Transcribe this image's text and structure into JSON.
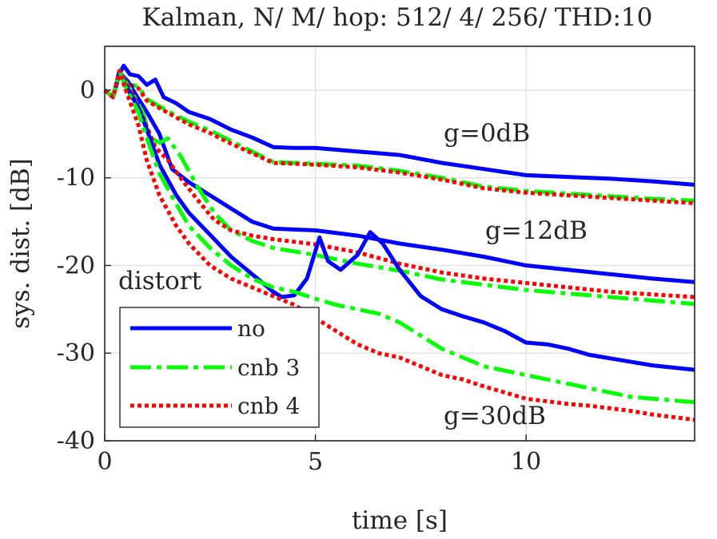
{
  "chart_data": {
    "type": "line",
    "title": "Kalman, N/ M/ hop: 512/ 4/ 256/ THD:10",
    "xlabel": "time [s]",
    "ylabel": "sys. dist. [dB]",
    "xlim": [
      0,
      14
    ],
    "ylim": [
      -40,
      5
    ],
    "xticks": [
      0,
      5,
      10
    ],
    "xtick_labels": [
      "0",
      "5",
      "10"
    ],
    "yticks": [
      0,
      -10,
      -20,
      -30,
      -40
    ],
    "ytick_labels": [
      "0",
      "-10",
      "-20",
      "-30",
      "-40"
    ],
    "grid": true,
    "legend_title": "distort",
    "legend_position": "bottom-left",
    "legend": [
      "no",
      "cnb 3",
      "cnb 4"
    ],
    "annotations": [
      {
        "text": "g=0dB",
        "x": 8.0,
        "y": -5.2
      },
      {
        "text": "g=12dB",
        "x": 9.2,
        "y": -16.0
      },
      {
        "text": "g=30dB",
        "x": 8.0,
        "y": -37.4
      }
    ],
    "series": [
      {
        "name": "no",
        "group": "g=0dB",
        "color": "#0000ff",
        "style": "solid",
        "x": [
          0,
          0.2,
          0.35,
          0.45,
          0.6,
          0.8,
          1.0,
          1.2,
          1.4,
          1.7,
          2.0,
          2.5,
          3.0,
          3.5,
          4.0,
          4.5,
          5.0,
          5.5,
          6.0,
          6.5,
          7.0,
          8.0,
          9.0,
          10.0,
          11.0,
          12.0,
          13.0,
          14.0
        ],
        "y": [
          0,
          -0.8,
          1.8,
          2.8,
          1.8,
          1.6,
          0.6,
          1.2,
          -0.8,
          -1.5,
          -2.5,
          -3.3,
          -4.5,
          -5.4,
          -6.5,
          -6.6,
          -6.6,
          -6.8,
          -7.0,
          -7.2,
          -7.4,
          -8.3,
          -9.0,
          -9.7,
          -9.9,
          -10.1,
          -10.4,
          -10.8
        ]
      },
      {
        "name": "cnb 3",
        "group": "g=0dB",
        "color": "#00ff00",
        "style": "dashdot",
        "x": [
          0,
          0.2,
          0.35,
          0.5,
          0.8,
          1.0,
          1.5,
          2.0,
          2.5,
          3.0,
          3.5,
          4.0,
          5.0,
          6.0,
          7.0,
          8.0,
          9.0,
          10.0,
          11.0,
          12.0,
          13.0,
          14.0
        ],
        "y": [
          0,
          -0.8,
          1.8,
          0.8,
          0.4,
          -1.0,
          -2.4,
          -3.6,
          -4.6,
          -5.8,
          -7.0,
          -8.2,
          -8.4,
          -8.6,
          -9.2,
          -10.0,
          -11.0,
          -11.5,
          -11.8,
          -12.1,
          -12.4,
          -12.6
        ]
      },
      {
        "name": "cnb 4",
        "group": "g=0dB",
        "color": "#ff0000",
        "style": "dotted",
        "x": [
          0,
          0.2,
          0.35,
          0.5,
          0.8,
          1.0,
          1.5,
          2.0,
          2.5,
          3.0,
          3.5,
          4.0,
          5.0,
          6.0,
          7.0,
          8.0,
          9.0,
          10.0,
          11.0,
          12.0,
          13.0,
          14.0
        ],
        "y": [
          0,
          -0.8,
          1.8,
          0.8,
          0.2,
          -1.2,
          -2.6,
          -3.9,
          -4.9,
          -6.1,
          -7.2,
          -8.3,
          -8.5,
          -8.8,
          -9.4,
          -10.2,
          -11.2,
          -11.7,
          -12.0,
          -12.3,
          -12.6,
          -12.9
        ]
      },
      {
        "name": "no",
        "group": "g=12dB",
        "color": "#0000ff",
        "style": "solid",
        "x": [
          0,
          0.2,
          0.35,
          0.55,
          0.75,
          1.0,
          1.3,
          1.6,
          2.0,
          2.5,
          3.0,
          3.5,
          4.0,
          5.0,
          6.0,
          7.0,
          8.0,
          9.0,
          10.0,
          11.0,
          12.0,
          13.0,
          14.0
        ],
        "y": [
          0,
          -0.8,
          2.0,
          1.0,
          -0.6,
          -2.5,
          -5.0,
          -9.0,
          -10.5,
          -12.0,
          -13.5,
          -15.0,
          -15.8,
          -16.0,
          -16.6,
          -17.5,
          -18.2,
          -19.0,
          -20.0,
          -20.5,
          -21.0,
          -21.5,
          -21.9
        ]
      },
      {
        "name": "cnb 3",
        "group": "g=12dB",
        "color": "#00ff00",
        "style": "dashdot",
        "x": [
          0,
          0.2,
          0.35,
          0.55,
          0.9,
          1.1,
          1.3,
          1.5,
          1.8,
          2.2,
          2.6,
          3.0,
          3.5,
          4.0,
          5.0,
          6.0,
          7.0,
          8.0,
          9.0,
          10.0,
          11.0,
          12.0,
          13.0,
          14.0
        ],
        "y": [
          0,
          -0.8,
          2.0,
          0.6,
          -2.5,
          -5.5,
          -6.0,
          -5.5,
          -7.5,
          -11.0,
          -14.0,
          -16.0,
          -17.2,
          -18.0,
          -18.8,
          -19.8,
          -20.6,
          -21.6,
          -22.2,
          -22.8,
          -23.2,
          -23.6,
          -24.0,
          -24.4
        ]
      },
      {
        "name": "cnb 4",
        "group": "g=12dB",
        "color": "#ff0000",
        "style": "dotted",
        "x": [
          0,
          0.2,
          0.35,
          0.55,
          0.9,
          1.2,
          1.5,
          1.8,
          2.2,
          2.6,
          3.0,
          3.5,
          4.0,
          5.0,
          6.0,
          7.0,
          8.0,
          9.0,
          10.0,
          11.0,
          12.0,
          13.0,
          14.0
        ],
        "y": [
          0,
          -0.8,
          2.0,
          0.6,
          -3.0,
          -6.5,
          -8.0,
          -10.0,
          -12.5,
          -14.8,
          -16.0,
          -16.6,
          -17.0,
          -17.6,
          -18.5,
          -19.8,
          -20.8,
          -21.5,
          -22.0,
          -22.5,
          -23.0,
          -23.3,
          -23.6
        ]
      },
      {
        "name": "no",
        "group": "g=30dB",
        "color": "#0000ff",
        "style": "solid",
        "x": [
          0,
          0.2,
          0.35,
          0.5,
          0.8,
          1.0,
          1.3,
          1.7,
          2.0,
          2.5,
          3.0,
          3.5,
          4.0,
          4.2,
          4.5,
          4.8,
          5.1,
          5.3,
          5.6,
          6.0,
          6.3,
          6.6,
          7.0,
          7.5,
          8.0,
          8.5,
          9.0,
          9.5,
          10.0,
          10.5,
          11.0,
          11.5,
          12.0,
          12.5,
          13.0,
          14.0
        ],
        "y": [
          0,
          -0.8,
          2.2,
          0.5,
          -2.0,
          -4.5,
          -8.5,
          -12.0,
          -14.0,
          -16.5,
          -19.0,
          -21.0,
          -23.0,
          -23.6,
          -23.4,
          -21.5,
          -16.8,
          -19.5,
          -20.5,
          -18.8,
          -16.2,
          -17.5,
          -20.5,
          -23.5,
          -25.0,
          -25.8,
          -26.5,
          -27.5,
          -28.8,
          -29.0,
          -29.5,
          -30.2,
          -30.6,
          -31.0,
          -31.4,
          -31.9
        ]
      },
      {
        "name": "cnb 3",
        "group": "g=30dB",
        "color": "#00ff00",
        "style": "dashdot",
        "x": [
          0,
          0.2,
          0.35,
          0.5,
          0.8,
          1.0,
          1.3,
          1.7,
          2.0,
          2.5,
          3.0,
          3.5,
          4.0,
          4.5,
          5.0,
          5.5,
          6.0,
          6.5,
          7.0,
          7.5,
          8.0,
          8.5,
          9.0,
          9.5,
          10.0,
          10.5,
          11.0,
          11.5,
          12.0,
          12.5,
          13.0,
          14.0
        ],
        "y": [
          0,
          -0.8,
          2.2,
          0.3,
          -2.5,
          -5.5,
          -9.5,
          -13.0,
          -15.5,
          -18.0,
          -20.0,
          -21.5,
          -22.5,
          -23.0,
          -23.8,
          -24.5,
          -25.0,
          -25.5,
          -26.5,
          -28.0,
          -29.5,
          -30.5,
          -31.5,
          -32.0,
          -32.5,
          -33.0,
          -33.5,
          -34.0,
          -34.5,
          -35.0,
          -35.2,
          -35.6
        ]
      },
      {
        "name": "cnb 4",
        "group": "g=30dB",
        "color": "#ff0000",
        "style": "dotted",
        "x": [
          0,
          0.2,
          0.35,
          0.5,
          0.8,
          1.0,
          1.3,
          1.7,
          2.0,
          2.5,
          3.0,
          3.5,
          4.0,
          4.5,
          5.0,
          5.5,
          6.0,
          6.5,
          7.0,
          7.5,
          8.0,
          8.5,
          9.0,
          9.5,
          10.0,
          10.5,
          11.0,
          11.5,
          12.0,
          12.5,
          13.0,
          14.0
        ],
        "y": [
          0,
          -0.8,
          2.2,
          0.0,
          -4.0,
          -8.0,
          -12.0,
          -15.5,
          -17.5,
          -20.0,
          -21.5,
          -22.5,
          -23.5,
          -24.5,
          -26.0,
          -27.5,
          -29.0,
          -30.0,
          -30.5,
          -31.5,
          -32.5,
          -33.0,
          -33.8,
          -34.5,
          -35.2,
          -35.5,
          -35.8,
          -36.0,
          -36.3,
          -36.6,
          -37.0,
          -37.6
        ]
      }
    ]
  }
}
